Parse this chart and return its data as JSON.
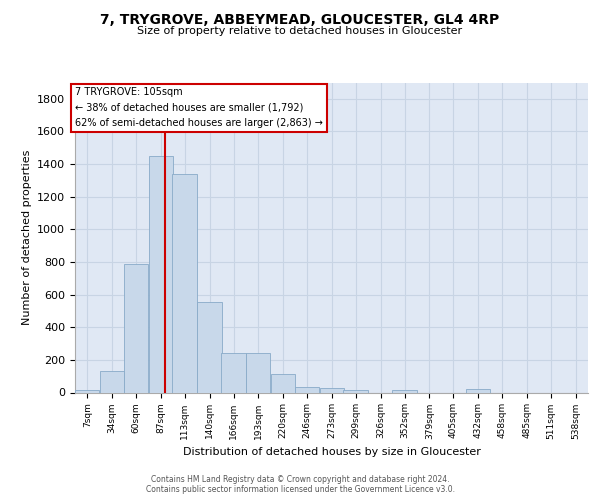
{
  "title1": "7, TRYGROVE, ABBEYMEAD, GLOUCESTER, GL4 4RP",
  "title2": "Size of property relative to detached houses in Gloucester",
  "xlabel": "Distribution of detached houses by size in Gloucester",
  "ylabel": "Number of detached properties",
  "bin_labels": [
    "7sqm",
    "34sqm",
    "60sqm",
    "87sqm",
    "113sqm",
    "140sqm",
    "166sqm",
    "193sqm",
    "220sqm",
    "246sqm",
    "273sqm",
    "299sqm",
    "326sqm",
    "352sqm",
    "379sqm",
    "405sqm",
    "432sqm",
    "458sqm",
    "485sqm",
    "511sqm",
    "538sqm"
  ],
  "bin_values": [
    7,
    34,
    60,
    87,
    113,
    140,
    166,
    193,
    220,
    246,
    273,
    299,
    326,
    352,
    379,
    405,
    432,
    458,
    485,
    511,
    538
  ],
  "bar_heights": [
    15,
    130,
    790,
    1450,
    1340,
    555,
    245,
    245,
    115,
    35,
    25,
    15,
    0,
    15,
    0,
    0,
    20,
    0,
    0,
    0,
    0
  ],
  "bar_color": "#c8d8ea",
  "bar_edge_color": "#88aac8",
  "grid_color": "#c8d4e4",
  "background_color": "#e0e8f4",
  "vline_x": 105,
  "vline_color": "#cc0000",
  "annotation_title": "7 TRYGROVE: 105sqm",
  "annotation_line1": "← 38% of detached houses are smaller (1,792)",
  "annotation_line2": "62% of semi-detached houses are larger (2,863) →",
  "box_facecolor": "#ffffff",
  "box_edgecolor": "#cc0000",
  "ylim": [
    0,
    1900
  ],
  "yticks": [
    0,
    200,
    400,
    600,
    800,
    1000,
    1200,
    1400,
    1600,
    1800
  ],
  "footer1": "Contains HM Land Registry data © Crown copyright and database right 2024.",
  "footer2": "Contains public sector information licensed under the Government Licence v3.0."
}
